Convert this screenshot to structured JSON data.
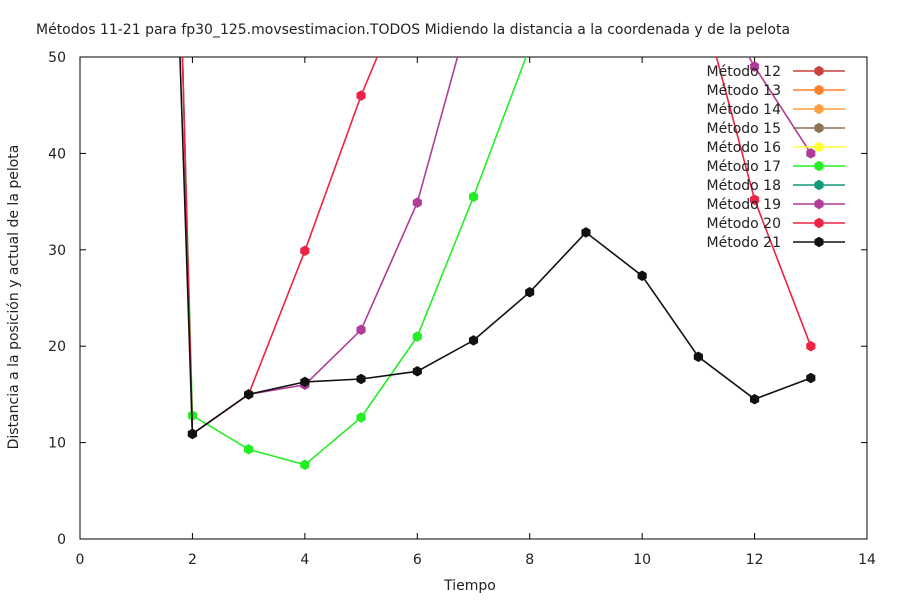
{
  "chart_data": {
    "type": "line",
    "title": "Métodos 11-21 para fp30_125.movsestimacion.TODOS Midiendo la distancia a la coordenada y de la pelota",
    "xlabel": "Tiempo",
    "ylabel": "Distancia a la posición y actual de la pelota",
    "xlim": [
      0,
      14
    ],
    "ylim": [
      0,
      50
    ],
    "x_ticks": [
      "0",
      "2",
      "4",
      "6",
      "8",
      "10",
      "12",
      "14"
    ],
    "y_ticks": [
      "0",
      "10",
      "20",
      "30",
      "40",
      "50"
    ],
    "grid": false,
    "legend_position": "top-right",
    "series": [
      {
        "name": "Método 12",
        "color": "#c8413a",
        "x": [],
        "y": []
      },
      {
        "name": "Método 13",
        "color": "#ff7f2a",
        "x": [],
        "y": []
      },
      {
        "name": "Método 14",
        "color": "#ffa040",
        "x": [],
        "y": []
      },
      {
        "name": "Método 15",
        "color": "#8b7355",
        "x": [],
        "y": []
      },
      {
        "name": "Método 16",
        "color": "#ffff33",
        "x": [],
        "y": []
      },
      {
        "name": "Método 17",
        "color": "#22ee22",
        "x": [
          1.8,
          2,
          3,
          4,
          5,
          6,
          7,
          8
        ],
        "y": [
          55,
          12.8,
          9.3,
          7.7,
          12.6,
          21,
          35.5,
          51
        ]
      },
      {
        "name": "Método 18",
        "color": "#119977",
        "x": [],
        "y": []
      },
      {
        "name": "Método 19",
        "color": "#b03c98",
        "x": [
          1.8,
          2,
          3,
          4,
          5,
          6,
          7,
          11.3,
          12,
          13
        ],
        "y": [
          55,
          10.9,
          15,
          16,
          21.7,
          34.9,
          56,
          56,
          49,
          40
        ]
      },
      {
        "name": "Método 20",
        "color": "#ee2244",
        "x": [
          1.8,
          2,
          3,
          4,
          5,
          6,
          11,
          12,
          13
        ],
        "y": [
          55,
          10.9,
          15,
          29.9,
          46,
          60,
          57,
          35.2,
          20
        ]
      },
      {
        "name": "Método 21",
        "color": "#111111",
        "x": [
          1.75,
          2,
          3,
          4,
          5,
          6,
          7,
          8,
          9,
          10,
          11,
          12,
          13
        ],
        "y": [
          55,
          10.9,
          15,
          16.3,
          16.6,
          17.4,
          20.6,
          25.6,
          31.8,
          27.3,
          18.9,
          14.5,
          16.7
        ]
      }
    ]
  }
}
